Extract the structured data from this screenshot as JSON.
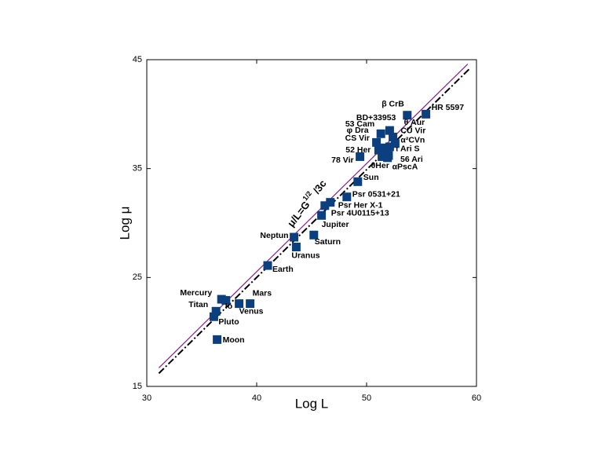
{
  "chart_data": {
    "type": "scatter",
    "xlabel": "Log L",
    "ylabel": "Log μ",
    "xlim": [
      30,
      60
    ],
    "ylim": [
      15,
      45
    ],
    "xticks": [
      30,
      40,
      50,
      60
    ],
    "yticks": [
      15,
      25,
      35,
      45
    ],
    "annotation": {
      "text": "μ/L=G",
      "sup": "1/2",
      "tail": " /3c"
    },
    "series": [
      {
        "color": "#0b3f7e",
        "labels": [
          "HR 5597",
          "β CrB",
          "BD+33953",
          "53 Cam",
          "θ Aur",
          "φ Dra",
          "CU Vir",
          "CS Vir",
          "α²CVn",
          "52 Her",
          "ι Ari S",
          "56 Ari",
          "78 Vir",
          "θHer",
          "αPscA",
          "Sun",
          "Psr 0531+21",
          "Psr Her X-1",
          "Psr 4U0115+13",
          "Jupiter",
          "Neptun",
          "Saturn",
          "Uranus",
          "Earth",
          "Mercury",
          "Io",
          "Venus",
          "Mars",
          "Titan",
          "Pluto",
          "Moon"
        ],
        "x": [
          55.4,
          53.7,
          52.1,
          51.3,
          52.4,
          50.9,
          52.6,
          51.5,
          52.1,
          51.1,
          51.8,
          52.0,
          49.4,
          51.4,
          51.9,
          49.2,
          48.2,
          46.7,
          46.2,
          45.9,
          43.4,
          45.2,
          43.6,
          41.0,
          36.8,
          37.2,
          38.4,
          39.4,
          36.3,
          36.1,
          36.4
        ],
        "values": [
          40.0,
          39.9,
          38.5,
          38.2,
          37.9,
          37.4,
          37.3,
          36.9,
          37.0,
          36.7,
          36.6,
          36.2,
          36.1,
          36.1,
          36.0,
          33.8,
          32.4,
          31.9,
          31.6,
          30.7,
          28.7,
          28.9,
          27.8,
          26.1,
          23.0,
          22.9,
          22.6,
          22.6,
          21.9,
          21.4,
          19.3
        ]
      }
    ],
    "lines": [
      {
        "color": "#8b1a8b",
        "x": [
          31.1,
          59.2
        ],
        "values": [
          16.7,
          44.6
        ]
      },
      {
        "color": "#000000",
        "dash": true,
        "x": [
          31.1,
          59.4
        ],
        "values": [
          16.2,
          44.2
        ]
      }
    ]
  }
}
